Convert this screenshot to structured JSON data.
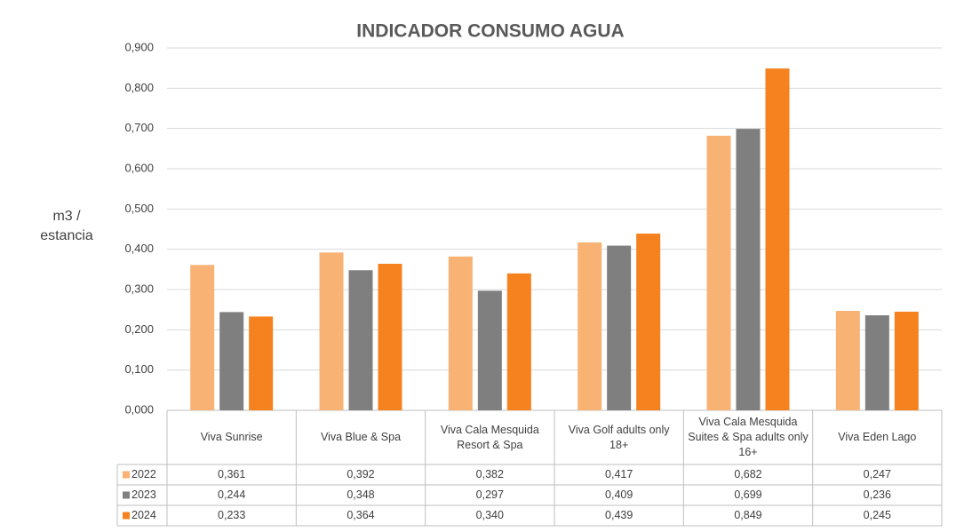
{
  "chart_data": {
    "type": "bar",
    "title": "INDICADOR CONSUMO AGUA",
    "y_label": "m3 / estancia",
    "categories": [
      "Viva Sunrise",
      "Viva Blue & Spa",
      "Viva Cala Mesquida Resort & Spa",
      "Viva Golf adults only 18+",
      "Viva Cala Mesquida Suites & Spa adults only 16+",
      "Viva Eden Lago"
    ],
    "series": [
      {
        "name": "2022",
        "color": "#f8b274",
        "values": [
          0.361,
          0.392,
          0.382,
          0.417,
          0.682,
          0.247
        ],
        "value_labels": [
          "0,361",
          "0,392",
          "0,382",
          "0,417",
          "0,682",
          "0,247"
        ]
      },
      {
        "name": "2023",
        "color": "#7f7f7f",
        "values": [
          0.244,
          0.348,
          0.297,
          0.409,
          0.699,
          0.236
        ],
        "value_labels": [
          "0,244",
          "0,348",
          "0,297",
          "0,409",
          "0,699",
          "0,236"
        ]
      },
      {
        "name": "2024",
        "color": "#f5821f",
        "values": [
          0.233,
          0.364,
          0.34,
          0.439,
          0.849,
          0.245
        ],
        "value_labels": [
          "0,233",
          "0,364",
          "0,340",
          "0,439",
          "0,849",
          "0,245"
        ]
      }
    ],
    "ylim": [
      0,
      0.9
    ],
    "yticks": [
      {
        "value": 0,
        "label": "0,000"
      },
      {
        "value": 0.1,
        "label": "0,100"
      },
      {
        "value": 0.2,
        "label": "0,200"
      },
      {
        "value": 0.3,
        "label": "0,300"
      },
      {
        "value": 0.4,
        "label": "0,400"
      },
      {
        "value": 0.5,
        "label": "0,500"
      },
      {
        "value": 0.6,
        "label": "0,600"
      },
      {
        "value": 0.7,
        "label": "0,700"
      },
      {
        "value": 0.8,
        "label": "0,800"
      },
      {
        "value": 0.9,
        "label": "0,900"
      }
    ],
    "grid": true
  }
}
